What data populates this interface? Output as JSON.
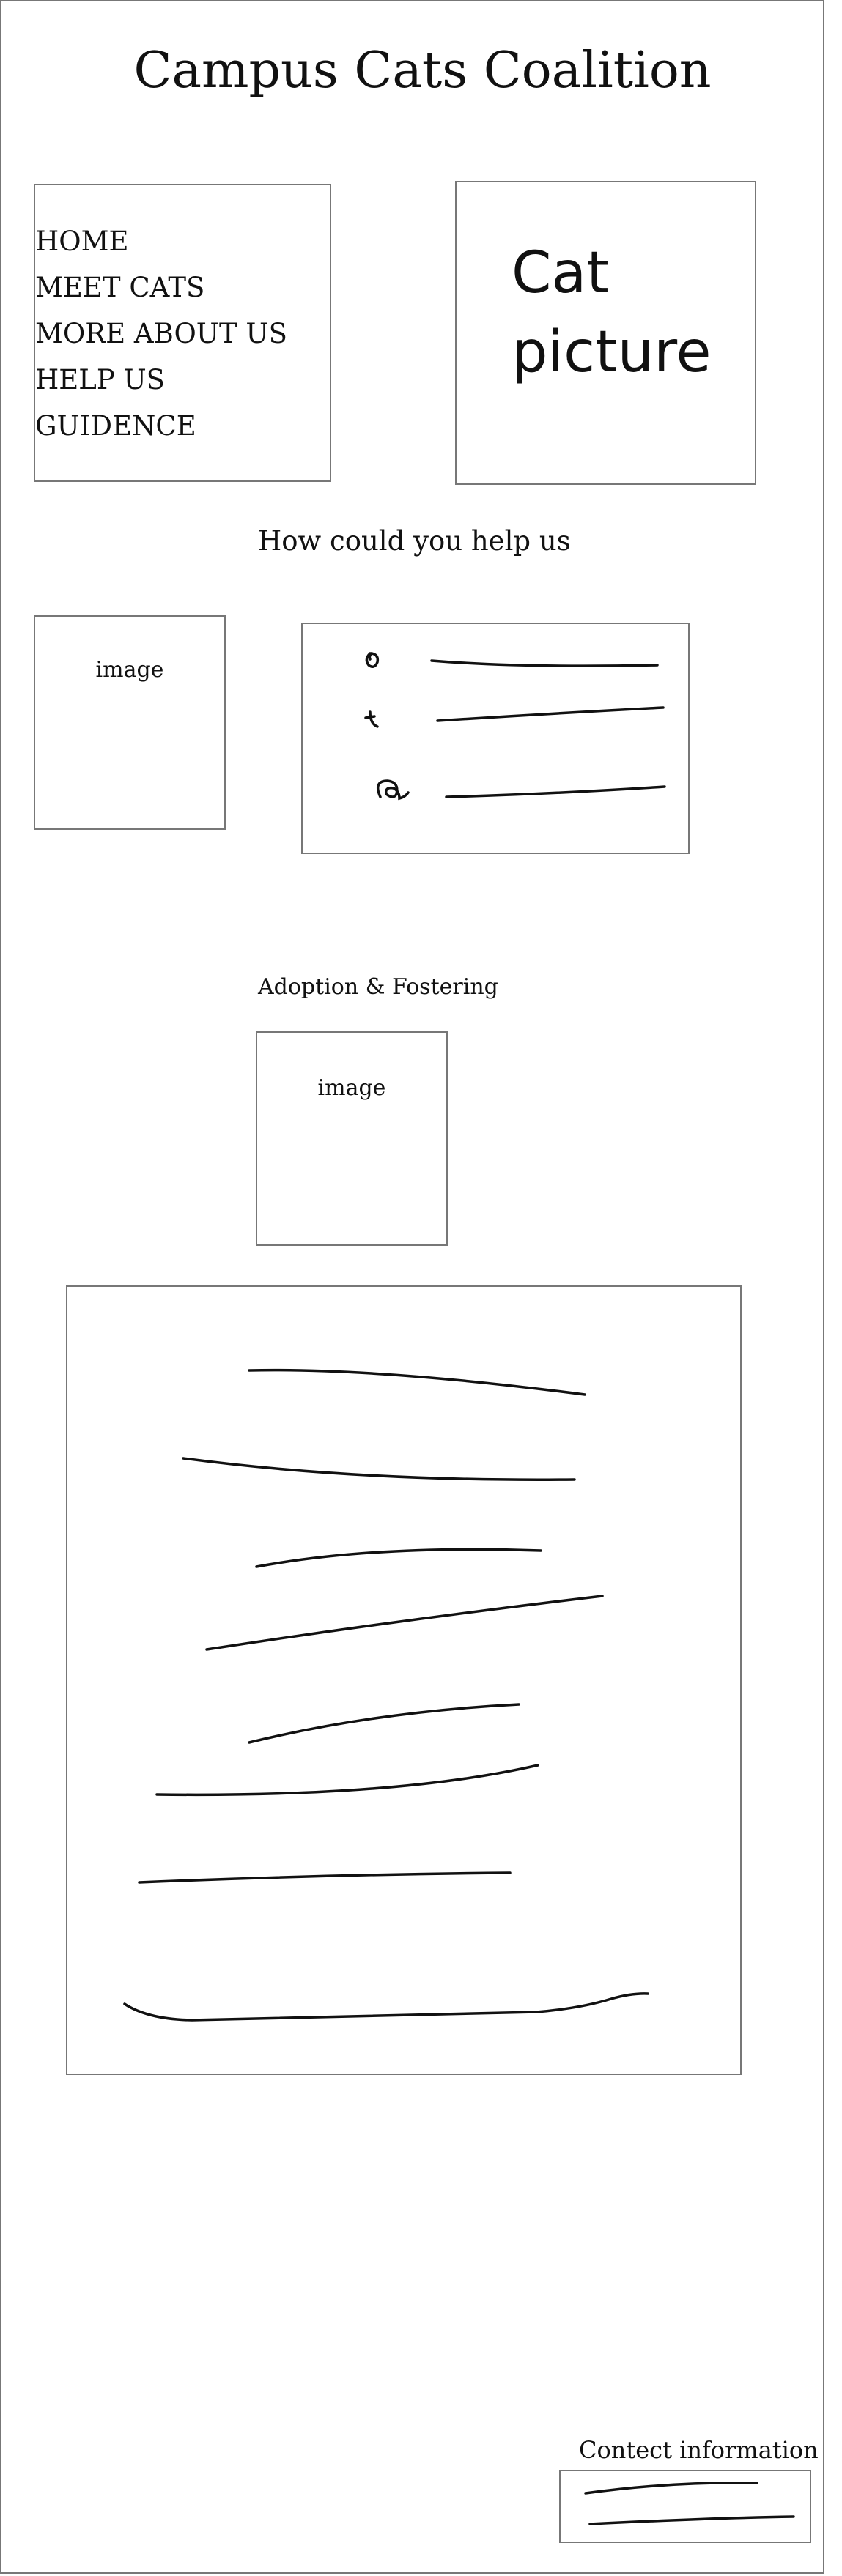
{
  "page": {
    "title": "Campus Cats Coalition"
  },
  "nav": {
    "items": [
      {
        "label": "HOME"
      },
      {
        "label": "MEET CATS"
      },
      {
        "label": "MORE ABOUT US"
      },
      {
        "label": "HELP US"
      },
      {
        "label": "GUIDENCE"
      }
    ]
  },
  "hero": {
    "image_label_line1": "Cat",
    "image_label_line2": "picture"
  },
  "help_section": {
    "heading": "How could you help us",
    "image_label": "image",
    "list_icons": [
      "instagram-doodle-icon",
      "tumblr-doodle-icon",
      "email-doodle-icon"
    ]
  },
  "adoption_section": {
    "heading": "Adoption & Fostering",
    "image_label": "image"
  },
  "contact": {
    "heading": "Contect information"
  }
}
